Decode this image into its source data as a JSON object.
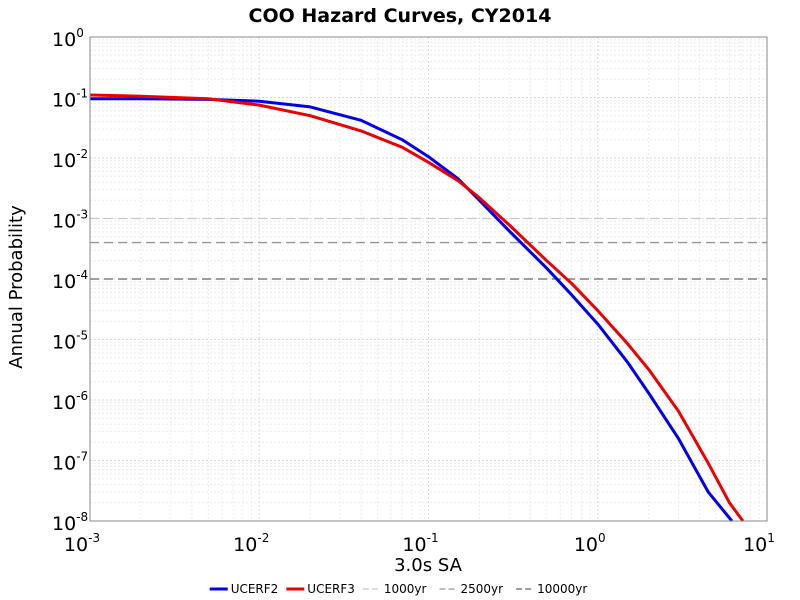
{
  "chart_data": {
    "type": "line",
    "title": "COO Hazard Curves, CY2014",
    "xlabel": "3.0s SA",
    "ylabel": "Annual Probability",
    "xscale": "log",
    "yscale": "log",
    "xlim": [
      0.001,
      10
    ],
    "ylim": [
      1e-08,
      1
    ],
    "x_ticks": [
      {
        "base": "10",
        "exp": "-3",
        "value": 0.001
      },
      {
        "base": "10",
        "exp": "-2",
        "value": 0.01
      },
      {
        "base": "10",
        "exp": "-1",
        "value": 0.1
      },
      {
        "base": "10",
        "exp": "0",
        "value": 1
      },
      {
        "base": "10",
        "exp": "1",
        "value": 10
      }
    ],
    "y_ticks": [
      {
        "base": "10",
        "exp": "0",
        "value": 1
      },
      {
        "base": "10",
        "exp": "-1",
        "value": 0.1
      },
      {
        "base": "10",
        "exp": "-2",
        "value": 0.01
      },
      {
        "base": "10",
        "exp": "-3",
        "value": 0.001
      },
      {
        "base": "10",
        "exp": "-4",
        "value": 0.0001
      },
      {
        "base": "10",
        "exp": "-5",
        "value": 1e-05
      },
      {
        "base": "10",
        "exp": "-6",
        "value": 1e-06
      },
      {
        "base": "10",
        "exp": "-7",
        "value": 1e-07
      },
      {
        "base": "10",
        "exp": "-8",
        "value": 1e-08
      }
    ],
    "grid": true,
    "legend_position": "bottom",
    "series": [
      {
        "name": "UCERF2",
        "color": "#0000ee",
        "points": [
          [
            0.001,
            0.095
          ],
          [
            0.002,
            0.095
          ],
          [
            0.005,
            0.093
          ],
          [
            0.01,
            0.087
          ],
          [
            0.02,
            0.07
          ],
          [
            0.04,
            0.042
          ],
          [
            0.07,
            0.02
          ],
          [
            0.1,
            0.0105
          ],
          [
            0.15,
            0.0045
          ],
          [
            0.2,
            0.002
          ],
          [
            0.3,
            0.00062
          ],
          [
            0.5,
            0.00015
          ],
          [
            0.7,
            5.5e-05
          ],
          [
            1.0,
            1.8e-05
          ],
          [
            1.5,
            4.2e-06
          ],
          [
            2.0,
            1.3e-06
          ],
          [
            3.0,
            2.3e-07
          ],
          [
            4.5,
            3e-08
          ],
          [
            6.2,
            1e-08
          ]
        ]
      },
      {
        "name": "UCERF3",
        "color": "#ee0000",
        "points": [
          [
            0.001,
            0.11
          ],
          [
            0.002,
            0.105
          ],
          [
            0.005,
            0.095
          ],
          [
            0.01,
            0.075
          ],
          [
            0.02,
            0.05
          ],
          [
            0.04,
            0.028
          ],
          [
            0.07,
            0.015
          ],
          [
            0.1,
            0.0085
          ],
          [
            0.15,
            0.0042
          ],
          [
            0.2,
            0.0022
          ],
          [
            0.3,
            0.00078
          ],
          [
            0.5,
            0.0002
          ],
          [
            0.7,
            8.5e-05
          ],
          [
            1.0,
            3e-05
          ],
          [
            1.5,
            8.5e-06
          ],
          [
            2.0,
            3.2e-06
          ],
          [
            3.0,
            6.5e-07
          ],
          [
            4.5,
            9e-08
          ],
          [
            6.0,
            2e-08
          ],
          [
            7.2,
            1e-08
          ]
        ]
      }
    ],
    "reference_lines": [
      {
        "name": "1000yr",
        "y": 0.001,
        "color": "#c8c8c8"
      },
      {
        "name": "2500yr",
        "y": 0.0004,
        "color": "#969696"
      },
      {
        "name": "10000yr",
        "y": 0.0001,
        "color": "#646464"
      }
    ]
  }
}
